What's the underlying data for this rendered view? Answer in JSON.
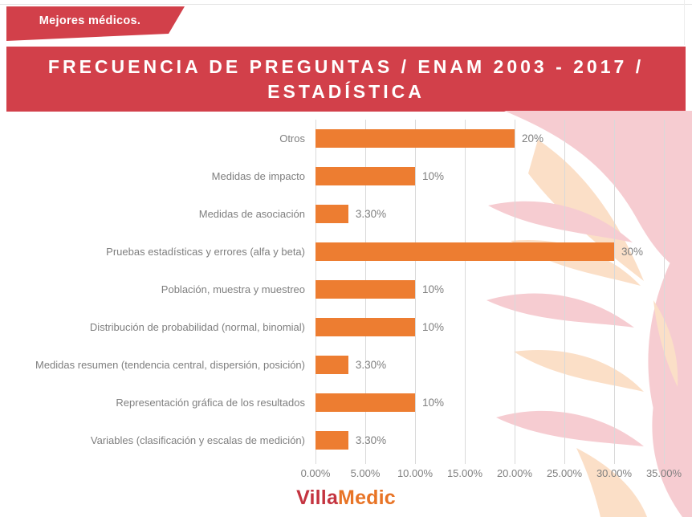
{
  "badge": {
    "label": "Mejores médicos."
  },
  "header": {
    "title": "FRECUENCIA DE PREGUNTAS / ENAM 2003 - 2017 / ESTADÍSTICA"
  },
  "chart_data": {
    "type": "bar",
    "orientation": "horizontal",
    "title": "FRECUENCIA DE PREGUNTAS / ENAM 2003 - 2017 / ESTADÍSTICA",
    "xlabel": "",
    "ylabel": "",
    "categories": [
      "Otros",
      "Medidas de impacto",
      "Medidas de asociación",
      "Pruebas estadísticas y errores (alfa y beta)",
      "Población, muestra y muestreo",
      "Distribución de probabilidad (normal, binomial)",
      "Medidas resumen (tendencia central, dispersión, posición)",
      "Representación gráfica de los resultados",
      "Variables (clasificación y escalas de medición)"
    ],
    "values": [
      20,
      10,
      3.3,
      30,
      10,
      10,
      3.3,
      10,
      3.3
    ],
    "value_labels": [
      "20%",
      "10%",
      "3.30%",
      "30%",
      "10%",
      "10%",
      "3.30%",
      "10%",
      "3.30%"
    ],
    "x_ticks": [
      "0.00%",
      "5.00%",
      "10.00%",
      "15.00%",
      "20.00%",
      "25.00%",
      "30.00%",
      "35.00%"
    ],
    "xlim": [
      0,
      35
    ],
    "grid": true,
    "legend": "none",
    "bar_color": "#ED7D31"
  },
  "footer": {
    "logo_part1": "Villa",
    "logo_part2": "Medic"
  },
  "colors": {
    "banner_red": "#d2404a",
    "bar_orange": "#ED7D31",
    "label_gray": "#7f7f7f",
    "gridline_gray": "#d9d9d9",
    "watermark_pink": "#f6ccd1",
    "watermark_peach": "#fbdfc7",
    "logo_red": "#c43440",
    "logo_orange": "#e87426"
  }
}
